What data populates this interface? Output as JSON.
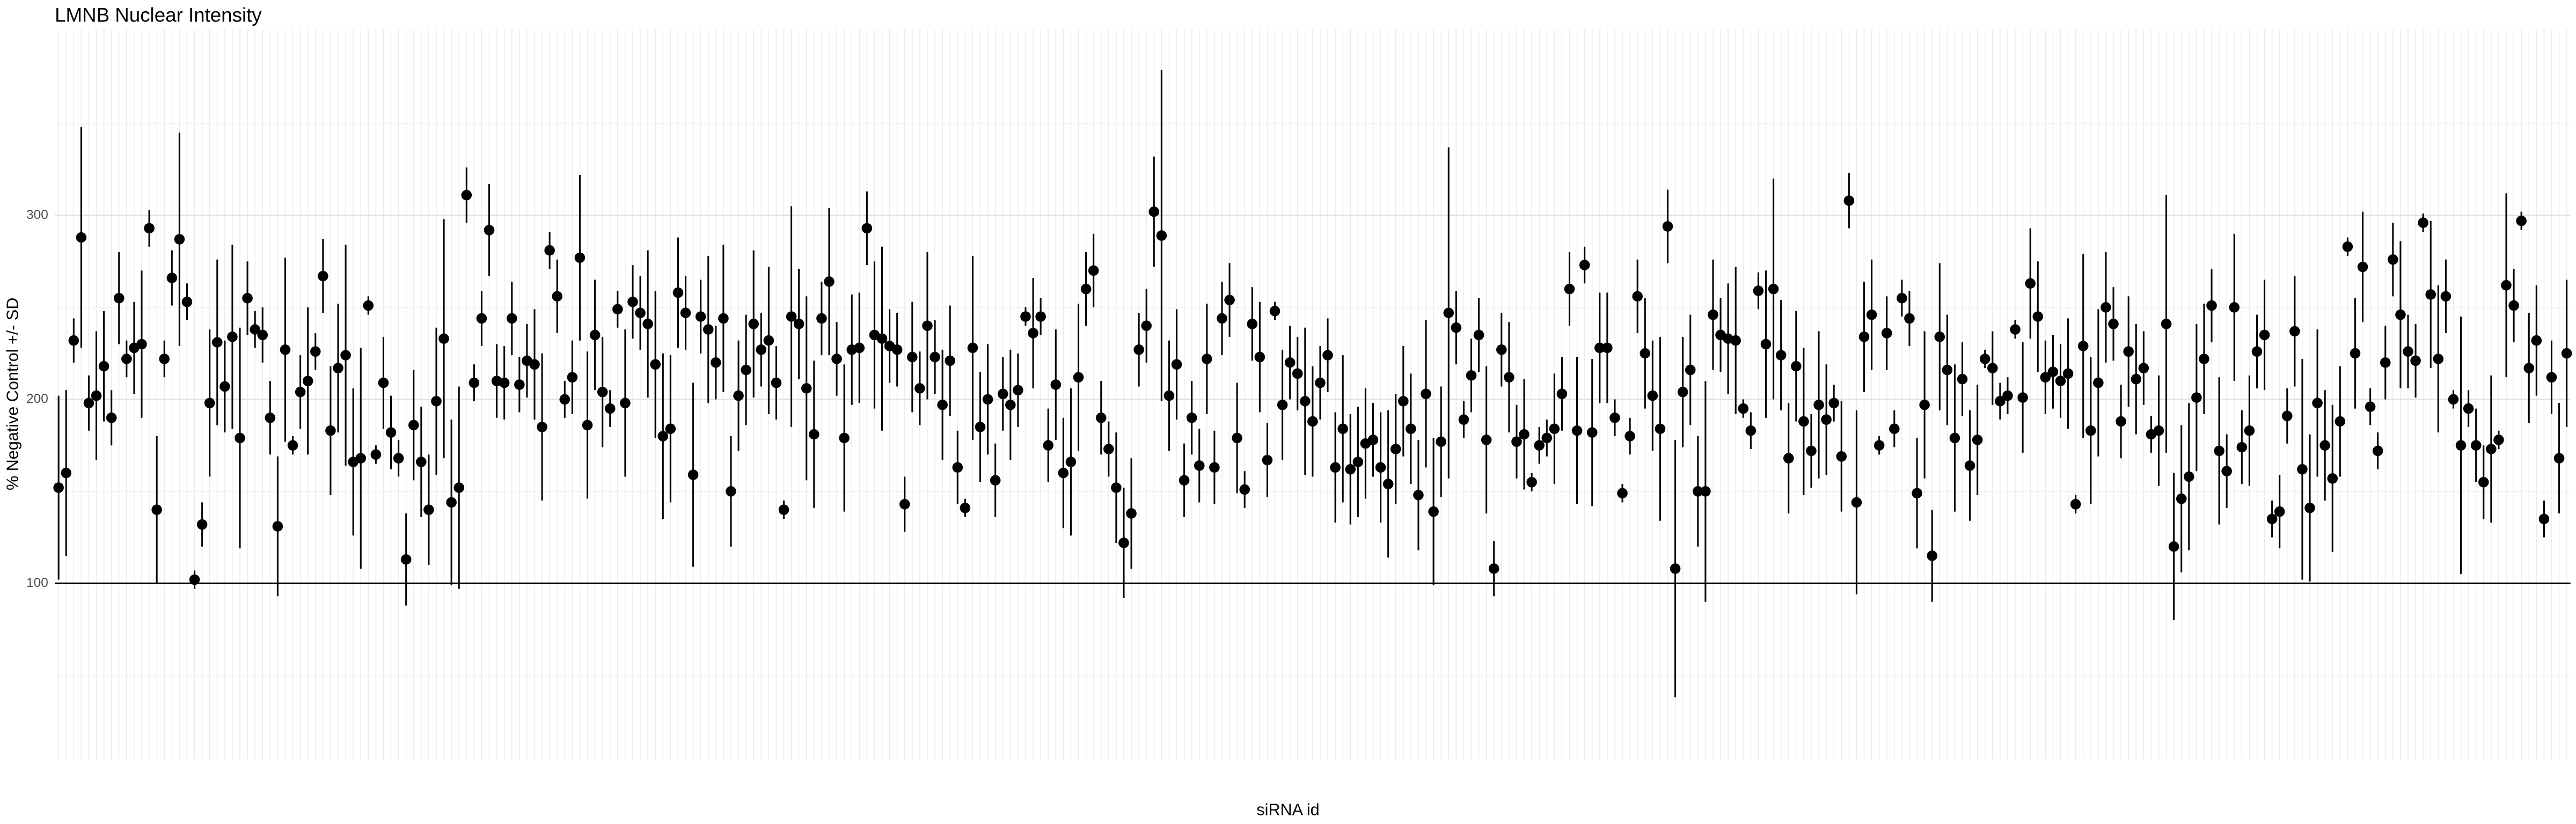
{
  "chart_data": {
    "type": "errorbar_point",
    "title": "LMNB Nuclear Intensity",
    "xlabel": "siRNA id",
    "ylabel": "% Negative Control +/- SD",
    "ylim": [
      4,
      401
    ],
    "yticks": [
      100,
      200,
      300
    ],
    "minor_yticks": [
      50,
      150,
      250,
      350
    ],
    "hline": 100,
    "grid": true,
    "color": "#000000",
    "values": [
      152,
      160,
      232,
      288,
      198,
      202,
      218,
      190,
      255,
      222,
      228,
      230,
      293,
      140,
      222,
      266,
      287,
      253,
      102,
      132,
      198,
      231,
      207,
      234,
      179,
      255,
      238,
      235,
      190,
      131,
      227,
      175,
      204,
      210,
      226,
      267,
      183,
      217,
      224,
      166,
      168,
      251,
      170,
      209,
      182,
      168,
      113,
      186,
      166,
      140,
      199,
      233,
      144,
      152,
      311,
      209,
      244,
      292,
      210,
      209,
      244,
      208,
      221,
      219,
      185,
      281,
      256,
      200,
      212,
      277,
      186,
      235,
      204,
      195,
      249,
      198,
      253,
      247,
      241,
      219,
      180,
      184,
      258,
      247,
      159,
      245,
      238,
      220,
      244,
      150,
      202,
      216,
      241,
      227,
      232,
      209,
      140,
      245,
      241,
      206,
      181,
      244,
      264,
      222,
      179,
      227,
      228,
      293,
      235,
      233,
      229,
      227,
      143,
      223,
      206,
      240,
      223,
      197,
      221,
      163,
      141,
      228,
      185,
      200,
      156,
      203,
      197,
      205,
      245,
      236,
      245,
      175,
      208,
      160,
      166,
      212,
      260,
      270,
      190,
      173,
      152,
      122,
      138,
      227,
      240,
      302,
      289,
      202,
      219,
      156,
      190,
      164,
      222,
      163,
      244,
      254,
      179,
      151,
      241,
      223,
      167,
      248,
      197,
      220,
      214,
      199,
      188,
      209,
      224,
      163,
      184,
      162,
      166,
      176,
      178,
      163,
      154,
      173,
      199,
      184,
      148,
      203,
      139,
      177,
      247,
      239,
      189,
      213,
      235,
      178,
      108,
      227,
      212,
      177,
      181,
      155,
      175,
      179,
      184,
      203,
      260,
      183,
      273,
      182,
      228,
      228,
      190,
      149,
      180,
      256,
      225,
      202,
      184,
      294,
      108,
      204,
      216,
      150,
      150,
      246,
      235,
      233,
      232,
      195,
      183,
      259,
      230,
      260,
      224,
      168,
      218,
      188,
      172,
      197,
      189,
      198,
      169,
      308,
      144,
      234,
      246,
      175,
      236,
      184,
      255,
      244,
      149,
      197,
      115,
      234,
      216,
      179,
      211,
      164,
      178,
      222,
      217,
      199,
      202,
      238,
      201,
      263,
      245,
      212,
      215,
      210,
      214,
      143,
      229,
      183,
      209,
      250,
      241,
      188,
      226,
      211,
      217,
      181,
      183,
      241,
      120,
      146,
      158,
      201,
      222,
      251,
      172,
      161,
      250,
      174,
      183,
      226,
      235,
      135,
      139,
      191,
      237,
      162,
      141,
      198,
      175,
      157,
      188,
      283,
      225,
      272,
      196,
      172,
      220,
      276,
      246,
      226,
      221,
      296,
      257,
      222,
      256,
      200,
      175,
      195,
      175,
      155,
      173,
      178,
      262,
      251,
      297,
      217,
      232,
      135,
      212,
      168,
      225
    ],
    "errors": [
      50,
      45,
      12,
      60,
      15,
      35,
      30,
      15,
      25,
      10,
      25,
      40,
      10,
      40,
      10,
      15,
      58,
      10,
      5,
      12,
      40,
      45,
      25,
      50,
      60,
      20,
      10,
      15,
      20,
      38,
      50,
      5,
      20,
      40,
      10,
      20,
      35,
      35,
      60,
      40,
      60,
      5,
      5,
      25,
      20,
      10,
      25,
      30,
      30,
      30,
      40,
      65,
      45,
      55,
      15,
      10,
      15,
      25,
      20,
      20,
      20,
      15,
      20,
      30,
      40,
      10,
      20,
      10,
      20,
      45,
      40,
      30,
      30,
      10,
      10,
      40,
      20,
      20,
      40,
      40,
      45,
      40,
      30,
      20,
      50,
      20,
      40,
      20,
      40,
      30,
      30,
      30,
      40,
      20,
      40,
      20,
      5,
      60,
      30,
      50,
      40,
      20,
      40,
      20,
      40,
      30,
      30,
      20,
      40,
      50,
      20,
      20,
      15,
      30,
      20,
      40,
      20,
      30,
      30,
      20,
      5,
      50,
      30,
      30,
      20,
      20,
      30,
      20,
      5,
      30,
      10,
      20,
      30,
      30,
      40,
      40,
      20,
      20,
      20,
      15,
      30,
      30,
      30,
      20,
      20,
      30,
      90,
      30,
      30,
      20,
      20,
      20,
      30,
      20,
      20,
      20,
      30,
      10,
      20,
      30,
      20,
      5,
      30,
      20,
      20,
      40,
      30,
      20,
      20,
      30,
      40,
      30,
      30,
      30,
      20,
      30,
      40,
      30,
      30,
      30,
      30,
      40,
      40,
      30,
      90,
      20,
      10,
      20,
      20,
      40,
      15,
      20,
      30,
      20,
      30,
      5,
      10,
      10,
      30,
      20,
      20,
      40,
      10,
      40,
      30,
      30,
      10,
      5,
      10,
      20,
      30,
      30,
      50,
      20,
      70,
      30,
      30,
      30,
      60,
      30,
      20,
      30,
      40,
      5,
      10,
      10,
      40,
      60,
      30,
      30,
      30,
      40,
      20,
      40,
      30,
      10,
      30,
      15,
      50,
      30,
      30,
      5,
      20,
      10,
      10,
      15,
      30,
      40,
      25,
      40,
      30,
      40,
      20,
      30,
      30,
      5,
      20,
      10,
      10,
      5,
      30,
      30,
      30,
      20,
      20,
      20,
      30,
      5,
      50,
      40,
      40,
      30,
      20,
      20,
      30,
      30,
      20,
      10,
      30,
      70,
      40,
      40,
      40,
      40,
      30,
      20,
      40,
      20,
      40,
      20,
      30,
      20,
      30,
      10,
      20,
      15,
      30,
      60,
      40,
      40,
      30,
      40,
      30,
      5,
      30,
      30,
      10,
      10,
      20,
      20,
      40,
      20,
      20,
      5,
      40,
      40,
      20,
      5,
      70,
      10,
      20,
      20,
      40,
      5,
      50,
      20,
      5,
      30,
      30,
      10,
      20,
      30,
      40
    ]
  }
}
